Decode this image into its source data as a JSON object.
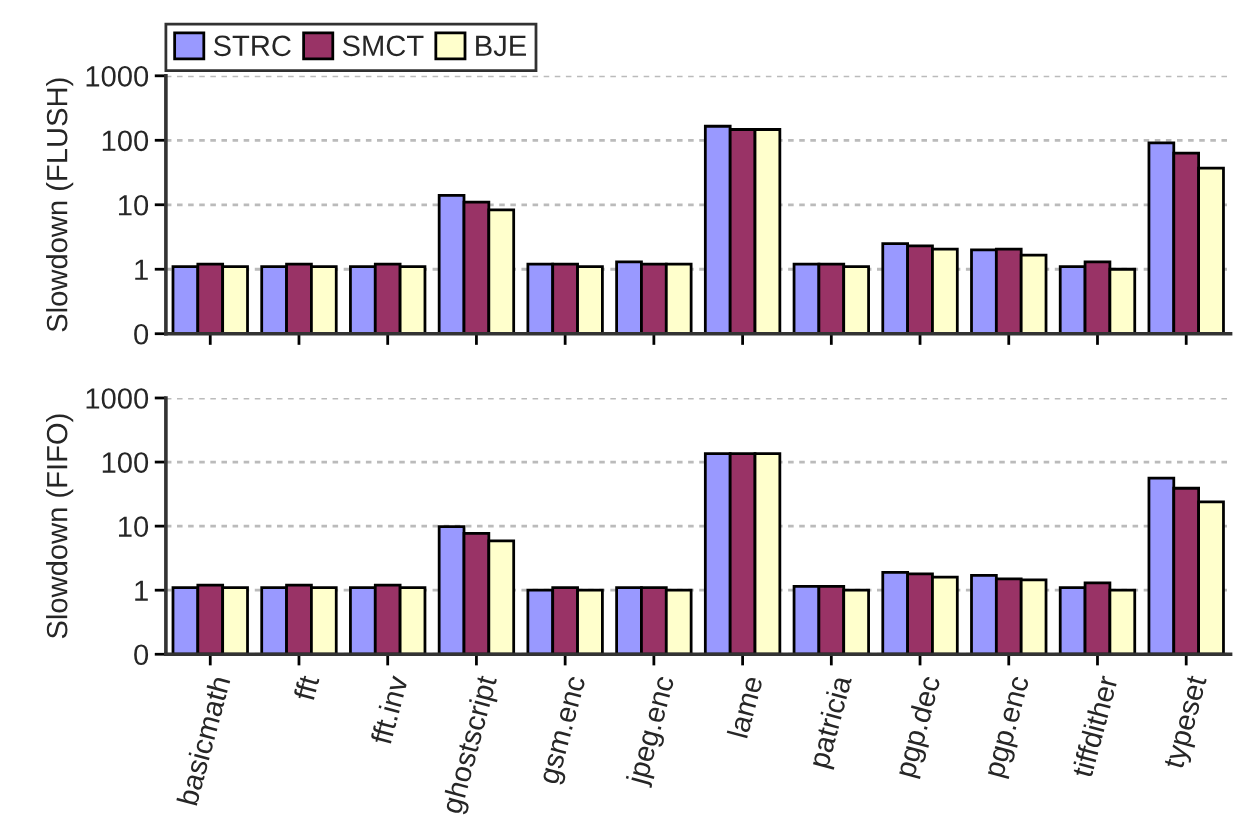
{
  "chart_data": [
    {
      "type": "bar",
      "ylabel": "Slowdown (FLUSH)",
      "categories": [
        null,
        null,
        null,
        null,
        null,
        null,
        null,
        null,
        null,
        null,
        null,
        null
      ],
      "series": [
        {
          "name": "STRC",
          "color": "#9999ff",
          "values": [
            1.1,
            1.1,
            1.1,
            14,
            1.2,
            1.3,
            165,
            1.2,
            2.5,
            2.0,
            1.1,
            91
          ]
        },
        {
          "name": "SMCT",
          "color": "#993366",
          "values": [
            1.2,
            1.2,
            1.2,
            11,
            1.2,
            1.2,
            147,
            1.2,
            2.3,
            2.05,
            1.3,
            63
          ]
        },
        {
          "name": "BJE",
          "color": "#ffffcc",
          "values": [
            1.1,
            1.1,
            1.1,
            8.3,
            1.1,
            1.2,
            147,
            1.1,
            2.05,
            1.65,
            1.0,
            37
          ]
        }
      ],
      "log": "y",
      "ylim": [
        0.1,
        1000
      ],
      "yticks": [
        {
          "value": 0.1,
          "label": "0"
        },
        1,
        10,
        100,
        1000
      ],
      "grid": "y",
      "legend": "top left",
      "tick_labels": "y"
    },
    {
      "type": "bar",
      "ylabel": "Slowdown (FIFO)",
      "categories": [
        "basicmath",
        "fft",
        "fft.inv",
        "ghostscript",
        "gsm.enc",
        "jpeg.enc",
        "lame",
        "patricia",
        "pgp.dec",
        "pgp.enc",
        "tiffdither",
        "typeset"
      ],
      "series": [
        {
          "color": "#9999ff",
          "values": [
            1.1,
            1.1,
            1.1,
            9.8,
            1.0,
            1.1,
            135,
            1.15,
            1.9,
            1.7,
            1.1,
            56
          ]
        },
        {
          "color": "#993366",
          "values": [
            1.2,
            1.2,
            1.2,
            7.7,
            1.1,
            1.1,
            135,
            1.15,
            1.8,
            1.5,
            1.3,
            39
          ]
        },
        {
          "color": "#ffffcc",
          "values": [
            1.1,
            1.1,
            1.1,
            5.9,
            1.0,
            1.0,
            135,
            1.0,
            1.6,
            1.45,
            1.0,
            24
          ]
        }
      ],
      "log": "y",
      "ylim": [
        0.1,
        1000
      ],
      "yticks": [
        {
          "value": 0.1,
          "label": "0"
        },
        1,
        10,
        100,
        1000
      ],
      "grid": "y"
    }
  ]
}
